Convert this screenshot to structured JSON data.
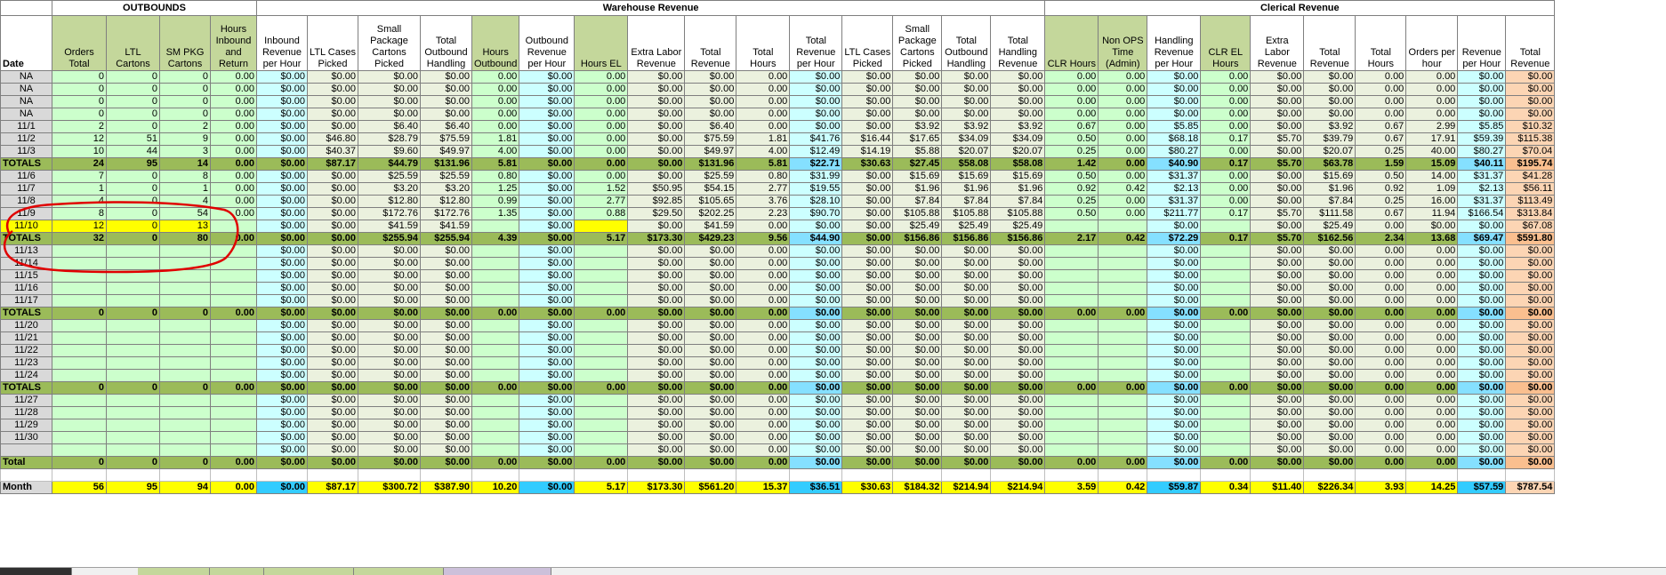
{
  "groups": [
    "OUTBOUNDS",
    "Warehouse Revenue",
    "Clerical Revenue"
  ],
  "headers": [
    "Date",
    "Orders Total",
    "LTL Cartons",
    "SM PKG Cartons",
    "Hours Inbound and Return",
    "Inbound Revenue per Hour",
    "LTL Cases Picked",
    "Small Package Cartons Picked",
    "Total Outbound Handling",
    "Hours Outbound",
    "Outbound Revenue per Hour",
    "Hours EL",
    "Extra Labor Revenue",
    "Total Revenue",
    "Total Hours",
    "Total Revenue per Hour",
    "LTL Cases Picked",
    "Small Package Cartons Picked",
    "Total Outbound Handling",
    "Total Handling Revenue",
    "CLR Hours",
    "Non OPS Time (Admin)",
    "Handling Revenue per Hour",
    "CLR EL Hours",
    "Extra Labor Revenue",
    "Total Revenue",
    "Total Hours",
    "Orders per hour",
    "Revenue per Hour",
    "Total Revenue"
  ],
  "colors": {
    "green_light": "#ccffcc",
    "green_mid": "#ebf1de",
    "green_header": "#c4d79b",
    "cyan": "#ccffff",
    "cyan_strong": "#33ccff",
    "orange": "#fcd5b4",
    "orange_strong": "#fabf8f",
    "yellow": "#ffff00",
    "totals": "#9bbb59",
    "date_grey": "#d9d9d9",
    "circle": "#e00000"
  },
  "rows": [
    {
      "type": "data",
      "cells": [
        "NA",
        "0",
        "0",
        "0",
        "0.00",
        "$0.00",
        "$0.00",
        "$0.00",
        "$0.00",
        "0.00",
        "$0.00",
        "0.00",
        "$0.00",
        "$0.00",
        "0.00",
        "$0.00",
        "$0.00",
        "$0.00",
        "$0.00",
        "$0.00",
        "0.00",
        "0.00",
        "$0.00",
        "0.00",
        "$0.00",
        "$0.00",
        "0.00",
        "0.00",
        "$0.00",
        "$0.00"
      ]
    },
    {
      "type": "data",
      "cells": [
        "NA",
        "0",
        "0",
        "0",
        "0.00",
        "$0.00",
        "$0.00",
        "$0.00",
        "$0.00",
        "0.00",
        "$0.00",
        "0.00",
        "$0.00",
        "$0.00",
        "0.00",
        "$0.00",
        "$0.00",
        "$0.00",
        "$0.00",
        "$0.00",
        "0.00",
        "0.00",
        "$0.00",
        "0.00",
        "$0.00",
        "$0.00",
        "0.00",
        "0.00",
        "$0.00",
        "$0.00"
      ]
    },
    {
      "type": "data",
      "cells": [
        "NA",
        "0",
        "0",
        "0",
        "0.00",
        "$0.00",
        "$0.00",
        "$0.00",
        "$0.00",
        "0.00",
        "$0.00",
        "0.00",
        "$0.00",
        "$0.00",
        "0.00",
        "$0.00",
        "$0.00",
        "$0.00",
        "$0.00",
        "$0.00",
        "0.00",
        "0.00",
        "$0.00",
        "0.00",
        "$0.00",
        "$0.00",
        "0.00",
        "0.00",
        "$0.00",
        "$0.00"
      ]
    },
    {
      "type": "data",
      "cells": [
        "NA",
        "0",
        "0",
        "0",
        "0.00",
        "$0.00",
        "$0.00",
        "$0.00",
        "$0.00",
        "0.00",
        "$0.00",
        "0.00",
        "$0.00",
        "$0.00",
        "0.00",
        "$0.00",
        "$0.00",
        "$0.00",
        "$0.00",
        "$0.00",
        "0.00",
        "0.00",
        "$0.00",
        "0.00",
        "$0.00",
        "$0.00",
        "0.00",
        "0.00",
        "$0.00",
        "$0.00"
      ]
    },
    {
      "type": "data",
      "cells": [
        "11/1",
        "2",
        "0",
        "2",
        "0.00",
        "$0.00",
        "$0.00",
        "$6.40",
        "$6.40",
        "0.00",
        "$0.00",
        "0.00",
        "$0.00",
        "$6.40",
        "0.00",
        "$0.00",
        "$0.00",
        "$3.92",
        "$3.92",
        "$3.92",
        "0.67",
        "0.00",
        "$5.85",
        "0.00",
        "$0.00",
        "$3.92",
        "0.67",
        "2.99",
        "$5.85",
        "$10.32"
      ]
    },
    {
      "type": "data",
      "cells": [
        "11/2",
        "12",
        "51",
        "9",
        "0.00",
        "$0.00",
        "$46.80",
        "$28.79",
        "$75.59",
        "1.81",
        "$0.00",
        "0.00",
        "$0.00",
        "$75.59",
        "1.81",
        "$41.76",
        "$16.44",
        "$17.65",
        "$34.09",
        "$34.09",
        "0.50",
        "0.00",
        "$68.18",
        "0.17",
        "$5.70",
        "$39.79",
        "0.67",
        "17.91",
        "$59.39",
        "$115.38"
      ]
    },
    {
      "type": "data",
      "cells": [
        "11/3",
        "10",
        "44",
        "3",
        "0.00",
        "$0.00",
        "$40.37",
        "$9.60",
        "$49.97",
        "4.00",
        "$0.00",
        "0.00",
        "$0.00",
        "$49.97",
        "4.00",
        "$12.49",
        "$14.19",
        "$5.88",
        "$20.07",
        "$20.07",
        "0.25",
        "0.00",
        "$80.27",
        "0.00",
        "$0.00",
        "$20.07",
        "0.25",
        "40.00",
        "$80.27",
        "$70.04"
      ]
    },
    {
      "type": "totals",
      "cells": [
        "TOTALS",
        "24",
        "95",
        "14",
        "0.00",
        "$0.00",
        "$87.17",
        "$44.79",
        "$131.96",
        "5.81",
        "$0.00",
        "0.00",
        "$0.00",
        "$131.96",
        "5.81",
        "$22.71",
        "$30.63",
        "$27.45",
        "$58.08",
        "$58.08",
        "1.42",
        "0.00",
        "$40.90",
        "0.17",
        "$5.70",
        "$63.78",
        "1.59",
        "15.09",
        "$40.11",
        "$195.74"
      ]
    },
    {
      "type": "data",
      "cells": [
        "11/6",
        "7",
        "0",
        "8",
        "0.00",
        "$0.00",
        "$0.00",
        "$25.59",
        "$25.59",
        "0.80",
        "$0.00",
        "0.00",
        "$0.00",
        "$25.59",
        "0.80",
        "$31.99",
        "$0.00",
        "$15.69",
        "$15.69",
        "$15.69",
        "0.50",
        "0.00",
        "$31.37",
        "0.00",
        "$0.00",
        "$15.69",
        "0.50",
        "14.00",
        "$31.37",
        "$41.28"
      ]
    },
    {
      "type": "data",
      "cells": [
        "11/7",
        "1",
        "0",
        "1",
        "0.00",
        "$0.00",
        "$0.00",
        "$3.20",
        "$3.20",
        "1.25",
        "$0.00",
        "1.52",
        "$50.95",
        "$54.15",
        "2.77",
        "$19.55",
        "$0.00",
        "$1.96",
        "$1.96",
        "$1.96",
        "0.92",
        "0.42",
        "$2.13",
        "0.00",
        "$0.00",
        "$1.96",
        "0.92",
        "1.09",
        "$2.13",
        "$56.11"
      ]
    },
    {
      "type": "data",
      "cells": [
        "11/8",
        "4",
        "0",
        "4",
        "0.00",
        "$0.00",
        "$0.00",
        "$12.80",
        "$12.80",
        "0.99",
        "$0.00",
        "2.77",
        "$92.85",
        "$105.65",
        "3.76",
        "$28.10",
        "$0.00",
        "$7.84",
        "$7.84",
        "$7.84",
        "0.25",
        "0.00",
        "$31.37",
        "0.00",
        "$0.00",
        "$7.84",
        "0.25",
        "16.00",
        "$31.37",
        "$113.49"
      ]
    },
    {
      "type": "data",
      "cells": [
        "11/9",
        "8",
        "0",
        "54",
        "0.00",
        "$0.00",
        "$0.00",
        "$172.76",
        "$172.76",
        "1.35",
        "$0.00",
        "0.88",
        "$29.50",
        "$202.25",
        "2.23",
        "$90.70",
        "$0.00",
        "$105.88",
        "$105.88",
        "$105.88",
        "0.50",
        "0.00",
        "$211.77",
        "0.17",
        "$5.70",
        "$111.58",
        "0.67",
        "11.94",
        "$166.54",
        "$313.84"
      ]
    },
    {
      "type": "yellow",
      "cells": [
        "11/10",
        "12",
        "0",
        "13",
        "",
        "$0.00",
        "$0.00",
        "$41.59",
        "$41.59",
        "",
        "$0.00",
        "",
        "$0.00",
        "$41.59",
        "0.00",
        "$0.00",
        "$0.00",
        "$25.49",
        "$25.49",
        "$25.49",
        "",
        "",
        "$0.00",
        "",
        "$0.00",
        "$25.49",
        "0.00",
        "$0.00",
        "$0.00",
        "$67.08"
      ]
    },
    {
      "type": "totals",
      "cells": [
        "TOTALS",
        "32",
        "0",
        "80",
        "0.00",
        "$0.00",
        "$0.00",
        "$255.94",
        "$255.94",
        "4.39",
        "$0.00",
        "5.17",
        "$173.30",
        "$429.23",
        "9.56",
        "$44.90",
        "$0.00",
        "$156.86",
        "$156.86",
        "$156.86",
        "2.17",
        "0.42",
        "$72.29",
        "0.17",
        "$5.70",
        "$162.56",
        "2.34",
        "13.68",
        "$69.47",
        "$591.80"
      ]
    },
    {
      "type": "empty",
      "cells": [
        "11/13",
        "",
        "",
        "",
        "",
        "$0.00",
        "$0.00",
        "$0.00",
        "$0.00",
        "",
        "$0.00",
        "",
        "$0.00",
        "$0.00",
        "0.00",
        "$0.00",
        "$0.00",
        "$0.00",
        "$0.00",
        "$0.00",
        "",
        "",
        "$0.00",
        "",
        "$0.00",
        "$0.00",
        "0.00",
        "0.00",
        "$0.00",
        "$0.00"
      ]
    },
    {
      "type": "empty",
      "cells": [
        "11/14",
        "",
        "",
        "",
        "",
        "$0.00",
        "$0.00",
        "$0.00",
        "$0.00",
        "",
        "$0.00",
        "",
        "$0.00",
        "$0.00",
        "0.00",
        "$0.00",
        "$0.00",
        "$0.00",
        "$0.00",
        "$0.00",
        "",
        "",
        "$0.00",
        "",
        "$0.00",
        "$0.00",
        "0.00",
        "0.00",
        "$0.00",
        "$0.00"
      ]
    },
    {
      "type": "empty",
      "cells": [
        "11/15",
        "",
        "",
        "",
        "",
        "$0.00",
        "$0.00",
        "$0.00",
        "$0.00",
        "",
        "$0.00",
        "",
        "$0.00",
        "$0.00",
        "0.00",
        "$0.00",
        "$0.00",
        "$0.00",
        "$0.00",
        "$0.00",
        "",
        "",
        "$0.00",
        "",
        "$0.00",
        "$0.00",
        "0.00",
        "0.00",
        "$0.00",
        "$0.00"
      ]
    },
    {
      "type": "empty",
      "cells": [
        "11/16",
        "",
        "",
        "",
        "",
        "$0.00",
        "$0.00",
        "$0.00",
        "$0.00",
        "",
        "$0.00",
        "",
        "$0.00",
        "$0.00",
        "0.00",
        "$0.00",
        "$0.00",
        "$0.00",
        "$0.00",
        "$0.00",
        "",
        "",
        "$0.00",
        "",
        "$0.00",
        "$0.00",
        "0.00",
        "0.00",
        "$0.00",
        "$0.00"
      ]
    },
    {
      "type": "empty",
      "cells": [
        "11/17",
        "",
        "",
        "",
        "",
        "$0.00",
        "$0.00",
        "$0.00",
        "$0.00",
        "",
        "$0.00",
        "",
        "$0.00",
        "$0.00",
        "0.00",
        "$0.00",
        "$0.00",
        "$0.00",
        "$0.00",
        "$0.00",
        "",
        "",
        "$0.00",
        "",
        "$0.00",
        "$0.00",
        "0.00",
        "0.00",
        "$0.00",
        "$0.00"
      ]
    },
    {
      "type": "totals",
      "cells": [
        "TOTALS",
        "0",
        "0",
        "0",
        "0.00",
        "$0.00",
        "$0.00",
        "$0.00",
        "$0.00",
        "0.00",
        "$0.00",
        "0.00",
        "$0.00",
        "$0.00",
        "0.00",
        "$0.00",
        "$0.00",
        "$0.00",
        "$0.00",
        "$0.00",
        "0.00",
        "0.00",
        "$0.00",
        "0.00",
        "$0.00",
        "$0.00",
        "0.00",
        "0.00",
        "$0.00",
        "$0.00"
      ]
    },
    {
      "type": "empty",
      "cells": [
        "11/20",
        "",
        "",
        "",
        "",
        "$0.00",
        "$0.00",
        "$0.00",
        "$0.00",
        "",
        "$0.00",
        "",
        "$0.00",
        "$0.00",
        "0.00",
        "$0.00",
        "$0.00",
        "$0.00",
        "$0.00",
        "$0.00",
        "",
        "",
        "$0.00",
        "",
        "$0.00",
        "$0.00",
        "0.00",
        "0.00",
        "$0.00",
        "$0.00"
      ]
    },
    {
      "type": "empty",
      "cells": [
        "11/21",
        "",
        "",
        "",
        "",
        "$0.00",
        "$0.00",
        "$0.00",
        "$0.00",
        "",
        "$0.00",
        "",
        "$0.00",
        "$0.00",
        "0.00",
        "$0.00",
        "$0.00",
        "$0.00",
        "$0.00",
        "$0.00",
        "",
        "",
        "$0.00",
        "",
        "$0.00",
        "$0.00",
        "0.00",
        "0.00",
        "$0.00",
        "$0.00"
      ]
    },
    {
      "type": "empty",
      "cells": [
        "11/22",
        "",
        "",
        "",
        "",
        "$0.00",
        "$0.00",
        "$0.00",
        "$0.00",
        "",
        "$0.00",
        "",
        "$0.00",
        "$0.00",
        "0.00",
        "$0.00",
        "$0.00",
        "$0.00",
        "$0.00",
        "$0.00",
        "",
        "",
        "$0.00",
        "",
        "$0.00",
        "$0.00",
        "0.00",
        "0.00",
        "$0.00",
        "$0.00"
      ]
    },
    {
      "type": "empty",
      "cells": [
        "11/23",
        "",
        "",
        "",
        "",
        "$0.00",
        "$0.00",
        "$0.00",
        "$0.00",
        "",
        "$0.00",
        "",
        "$0.00",
        "$0.00",
        "0.00",
        "$0.00",
        "$0.00",
        "$0.00",
        "$0.00",
        "$0.00",
        "",
        "",
        "$0.00",
        "",
        "$0.00",
        "$0.00",
        "0.00",
        "0.00",
        "$0.00",
        "$0.00"
      ]
    },
    {
      "type": "empty",
      "cells": [
        "11/24",
        "",
        "",
        "",
        "",
        "$0.00",
        "$0.00",
        "$0.00",
        "$0.00",
        "",
        "$0.00",
        "",
        "$0.00",
        "$0.00",
        "0.00",
        "$0.00",
        "$0.00",
        "$0.00",
        "$0.00",
        "$0.00",
        "",
        "",
        "$0.00",
        "",
        "$0.00",
        "$0.00",
        "0.00",
        "0.00",
        "$0.00",
        "$0.00"
      ]
    },
    {
      "type": "totals",
      "cells": [
        "TOTALS",
        "0",
        "0",
        "0",
        "0.00",
        "$0.00",
        "$0.00",
        "$0.00",
        "$0.00",
        "0.00",
        "$0.00",
        "0.00",
        "$0.00",
        "$0.00",
        "0.00",
        "$0.00",
        "$0.00",
        "$0.00",
        "$0.00",
        "$0.00",
        "0.00",
        "0.00",
        "$0.00",
        "0.00",
        "$0.00",
        "$0.00",
        "0.00",
        "0.00",
        "$0.00",
        "$0.00"
      ]
    },
    {
      "type": "empty",
      "cells": [
        "11/27",
        "",
        "",
        "",
        "",
        "$0.00",
        "$0.00",
        "$0.00",
        "$0.00",
        "",
        "$0.00",
        "",
        "$0.00",
        "$0.00",
        "0.00",
        "$0.00",
        "$0.00",
        "$0.00",
        "$0.00",
        "$0.00",
        "",
        "",
        "$0.00",
        "",
        "$0.00",
        "$0.00",
        "0.00",
        "0.00",
        "$0.00",
        "$0.00"
      ]
    },
    {
      "type": "empty",
      "cells": [
        "11/28",
        "",
        "",
        "",
        "",
        "$0.00",
        "$0.00",
        "$0.00",
        "$0.00",
        "",
        "$0.00",
        "",
        "$0.00",
        "$0.00",
        "0.00",
        "$0.00",
        "$0.00",
        "$0.00",
        "$0.00",
        "$0.00",
        "",
        "",
        "$0.00",
        "",
        "$0.00",
        "$0.00",
        "0.00",
        "0.00",
        "$0.00",
        "$0.00"
      ]
    },
    {
      "type": "empty",
      "cells": [
        "11/29",
        "",
        "",
        "",
        "",
        "$0.00",
        "$0.00",
        "$0.00",
        "$0.00",
        "",
        "$0.00",
        "",
        "$0.00",
        "$0.00",
        "0.00",
        "$0.00",
        "$0.00",
        "$0.00",
        "$0.00",
        "$0.00",
        "",
        "",
        "$0.00",
        "",
        "$0.00",
        "$0.00",
        "0.00",
        "0.00",
        "$0.00",
        "$0.00"
      ]
    },
    {
      "type": "empty",
      "cells": [
        "11/30",
        "",
        "",
        "",
        "",
        "$0.00",
        "$0.00",
        "$0.00",
        "$0.00",
        "",
        "$0.00",
        "",
        "$0.00",
        "$0.00",
        "0.00",
        "$0.00",
        "$0.00",
        "$0.00",
        "$0.00",
        "$0.00",
        "",
        "",
        "$0.00",
        "",
        "$0.00",
        "$0.00",
        "0.00",
        "0.00",
        "$0.00",
        "$0.00"
      ]
    },
    {
      "type": "empty",
      "cells": [
        "",
        "",
        "",
        "",
        "",
        "$0.00",
        "$0.00",
        "$0.00",
        "$0.00",
        "",
        "$0.00",
        "",
        "$0.00",
        "$0.00",
        "0.00",
        "$0.00",
        "$0.00",
        "$0.00",
        "$0.00",
        "$0.00",
        "",
        "",
        "$0.00",
        "",
        "$0.00",
        "$0.00",
        "0.00",
        "0.00",
        "$0.00",
        "$0.00"
      ]
    },
    {
      "type": "totals",
      "cells": [
        "Total",
        "0",
        "0",
        "0",
        "0.00",
        "$0.00",
        "$0.00",
        "$0.00",
        "$0.00",
        "0.00",
        "$0.00",
        "0.00",
        "$0.00",
        "$0.00",
        "0.00",
        "$0.00",
        "$0.00",
        "$0.00",
        "$0.00",
        "$0.00",
        "0.00",
        "0.00",
        "$0.00",
        "0.00",
        "$0.00",
        "$0.00",
        "0.00",
        "0.00",
        "$0.00",
        "$0.00"
      ]
    },
    {
      "type": "gap",
      "cells": []
    },
    {
      "type": "month",
      "cells": [
        "Month",
        "56",
        "95",
        "94",
        "0.00",
        "$0.00",
        "$87.17",
        "$300.72",
        "$387.90",
        "10.20",
        "$0.00",
        "5.17",
        "$173.30",
        "$561.20",
        "15.37",
        "$36.51",
        "$30.63",
        "$184.32",
        "$214.94",
        "$214.94",
        "3.59",
        "0.42",
        "$59.87",
        "0.34",
        "$11.40",
        "$226.34",
        "3.93",
        "14.25",
        "$57.59",
        "$787.54"
      ]
    }
  ]
}
